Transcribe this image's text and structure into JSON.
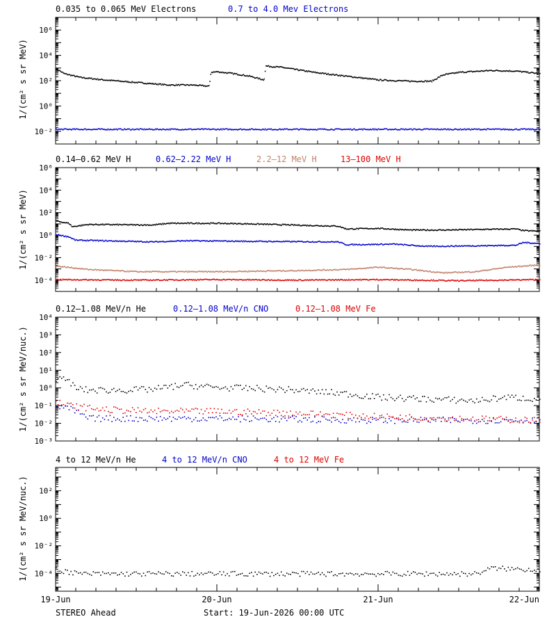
{
  "footer": {
    "spacecraft": "STEREO Ahead",
    "start": "Start: 19-Jun-2026 00:00 UTC"
  },
  "colors": {
    "black": "#000000",
    "blue": "#0000cc",
    "tan": "#c0806a",
    "red": "#dd0000"
  },
  "chart_data": [
    {
      "type": "scatter",
      "ylabel": "1/(cm² s sr MeV)",
      "log_y": true,
      "ylim_exp": [
        -3,
        7
      ],
      "ytick_exps": [
        -2,
        0,
        2,
        4,
        6
      ],
      "xlim_days": [
        0,
        3
      ],
      "x_ticks": [
        "19-Jun",
        "20-Jun",
        "21-Jun",
        "22-Jun"
      ],
      "series": [
        {
          "name": "0.035 to 0.065 MeV Electrons",
          "color": "#000000",
          "points": [
            [
              0.0,
              3.0
            ],
            [
              0.05,
              2.6
            ],
            [
              0.15,
              2.3
            ],
            [
              0.3,
              2.1
            ],
            [
              0.5,
              1.9
            ],
            [
              0.7,
              1.7
            ],
            [
              0.85,
              1.7
            ],
            [
              0.95,
              1.6
            ],
            [
              0.96,
              2.7
            ],
            [
              1.0,
              2.75
            ],
            [
              1.1,
              2.6
            ],
            [
              1.2,
              2.4
            ],
            [
              1.29,
              2.1
            ],
            [
              1.3,
              3.2
            ],
            [
              1.4,
              3.1
            ],
            [
              1.6,
              2.7
            ],
            [
              1.8,
              2.4
            ],
            [
              2.0,
              2.1
            ],
            [
              2.2,
              2.0
            ],
            [
              2.33,
              2.0
            ],
            [
              2.4,
              2.5
            ],
            [
              2.5,
              2.7
            ],
            [
              2.7,
              2.85
            ],
            [
              2.85,
              2.8
            ],
            [
              3.0,
              2.6
            ]
          ]
        },
        {
          "name": "0.7 to 4.0 Mev Electrons",
          "color": "#0000cc",
          "points": [
            [
              0.0,
              -1.8
            ],
            [
              1.0,
              -1.8
            ],
            [
              2.0,
              -1.8
            ],
            [
              3.0,
              -1.8
            ]
          ]
        }
      ]
    },
    {
      "type": "scatter",
      "ylabel": "1/(cm² s sr MeV)",
      "log_y": true,
      "ylim_exp": [
        -5,
        6
      ],
      "ytick_exps": [
        -4,
        -2,
        0,
        2,
        4,
        6
      ],
      "xlim_days": [
        0,
        3
      ],
      "x_ticks": [
        "19-Jun",
        "20-Jun",
        "21-Jun",
        "22-Jun"
      ],
      "series": [
        {
          "name": "0.14–0.62 MeV H",
          "color": "#000000",
          "points": [
            [
              0.0,
              1.3
            ],
            [
              0.08,
              1.1
            ],
            [
              0.1,
              0.8
            ],
            [
              0.2,
              1.0
            ],
            [
              0.6,
              0.95
            ],
            [
              0.7,
              1.1
            ],
            [
              1.0,
              1.1
            ],
            [
              1.2,
              1.05
            ],
            [
              1.6,
              0.9
            ],
            [
              1.75,
              0.85
            ],
            [
              1.8,
              0.6
            ],
            [
              2.0,
              0.65
            ],
            [
              2.2,
              0.5
            ],
            [
              2.4,
              0.5
            ],
            [
              2.6,
              0.55
            ],
            [
              2.85,
              0.6
            ],
            [
              2.9,
              0.45
            ],
            [
              3.0,
              0.4
            ]
          ]
        },
        {
          "name": "0.62–2.22 MeV H",
          "color": "#0000cc",
          "points": [
            [
              0.0,
              0.1
            ],
            [
              0.08,
              -0.1
            ],
            [
              0.12,
              -0.4
            ],
            [
              0.3,
              -0.45
            ],
            [
              0.6,
              -0.55
            ],
            [
              0.8,
              -0.45
            ],
            [
              1.2,
              -0.5
            ],
            [
              1.75,
              -0.55
            ],
            [
              1.8,
              -0.8
            ],
            [
              2.1,
              -0.75
            ],
            [
              2.3,
              -0.95
            ],
            [
              2.6,
              -0.9
            ],
            [
              2.85,
              -0.85
            ],
            [
              2.9,
              -0.6
            ],
            [
              3.0,
              -0.7
            ]
          ]
        },
        {
          "name": "2.2–12 MeV H",
          "color": "#c0806a",
          "points": [
            [
              0.0,
              -2.7
            ],
            [
              0.2,
              -3.0
            ],
            [
              0.5,
              -3.2
            ],
            [
              1.0,
              -3.2
            ],
            [
              1.5,
              -3.1
            ],
            [
              1.8,
              -3.0
            ],
            [
              2.0,
              -2.8
            ],
            [
              2.2,
              -3.0
            ],
            [
              2.4,
              -3.3
            ],
            [
              2.6,
              -3.2
            ],
            [
              2.8,
              -2.8
            ],
            [
              3.0,
              -2.6
            ]
          ]
        },
        {
          "name": "13–100 MeV H",
          "color": "#dd0000",
          "points": [
            [
              0.0,
              -3.9
            ],
            [
              0.5,
              -3.95
            ],
            [
              1.0,
              -3.9
            ],
            [
              1.5,
              -3.95
            ],
            [
              2.0,
              -3.9
            ],
            [
              2.5,
              -4.0
            ],
            [
              3.0,
              -3.9
            ]
          ]
        }
      ]
    },
    {
      "type": "scatter",
      "ylabel": "1/(cm² s sr MeV/nuc.)",
      "log_y": true,
      "ylim_exp": [
        -3,
        4
      ],
      "ytick_exps": [
        -3,
        -2,
        -1,
        0,
        1,
        2,
        3,
        4
      ],
      "xlim_days": [
        0,
        3
      ],
      "x_ticks": [
        "19-Jun",
        "20-Jun",
        "21-Jun",
        "22-Jun"
      ],
      "series": [
        {
          "name": "0.12–1.08 MeV/n He",
          "color": "#000000",
          "points": [
            [
              0.0,
              0.55
            ],
            [
              0.08,
              0.45
            ],
            [
              0.12,
              0.0
            ],
            [
              0.2,
              -0.1
            ],
            [
              0.4,
              -0.1
            ],
            [
              0.6,
              -0.05
            ],
            [
              0.8,
              0.2
            ],
            [
              1.0,
              0.05
            ],
            [
              1.4,
              -0.05
            ],
            [
              1.8,
              -0.3
            ],
            [
              2.0,
              -0.5
            ],
            [
              2.3,
              -0.6
            ],
            [
              2.6,
              -0.7
            ],
            [
              2.8,
              -0.5
            ],
            [
              3.0,
              -0.6
            ]
          ]
        },
        {
          "name": "0.12–1.08 MeV/n CNO",
          "color": "#0000cc",
          "points": [
            [
              0.0,
              -1.0
            ],
            [
              0.1,
              -1.2
            ],
            [
              0.2,
              -1.7
            ],
            [
              1.0,
              -1.7
            ],
            [
              2.0,
              -1.8
            ],
            [
              3.0,
              -1.8
            ]
          ]
        },
        {
          "name": "0.12–1.08 MeV Fe",
          "color": "#dd0000",
          "points": [
            [
              0.0,
              -0.8
            ],
            [
              0.1,
              -1.0
            ],
            [
              0.3,
              -1.2
            ],
            [
              0.6,
              -1.3
            ],
            [
              1.0,
              -1.3
            ],
            [
              1.5,
              -1.4
            ],
            [
              2.0,
              -1.6
            ],
            [
              2.5,
              -1.7
            ],
            [
              3.0,
              -1.8
            ]
          ]
        }
      ]
    },
    {
      "type": "scatter",
      "ylabel": "1/(cm² s sr MeV/nuc.)",
      "log_y": true,
      "ylim_exp": [
        -5.3,
        3.7
      ],
      "ytick_exps": [
        -4,
        -2,
        0,
        2
      ],
      "xlim_days": [
        0,
        3
      ],
      "x_ticks": [
        "19-Jun",
        "20-Jun",
        "21-Jun",
        "22-Jun"
      ],
      "series": [
        {
          "name": "4 to 12 MeV/n He",
          "color": "#000000",
          "points": [
            [
              0.0,
              -3.7
            ],
            [
              0.15,
              -4.0
            ],
            [
              1.0,
              -4.0
            ],
            [
              1.4,
              -4.0
            ],
            [
              2.0,
              -4.0
            ],
            [
              2.6,
              -4.0
            ],
            [
              2.7,
              -3.6
            ],
            [
              3.0,
              -3.7
            ]
          ]
        },
        {
          "name": "4 to 12 MeV/n CNO",
          "color": "#0000cc",
          "points": []
        },
        {
          "name": "4 to 12 MeV Fe",
          "color": "#dd0000",
          "points": []
        }
      ]
    }
  ]
}
